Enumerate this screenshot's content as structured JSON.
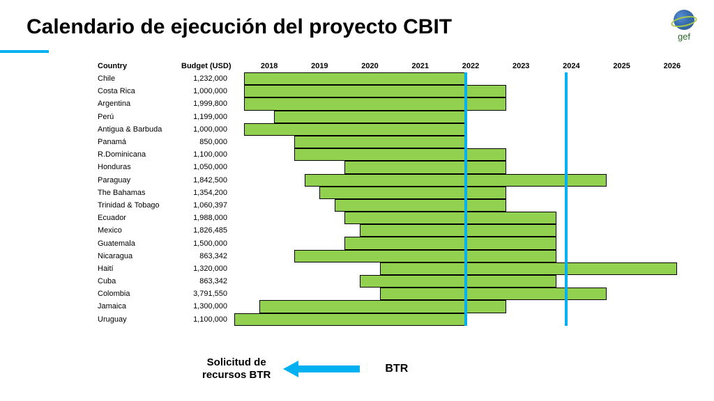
{
  "title": "Calendario de ejecución del proyecto CBIT",
  "logo_text": "gef",
  "headers": {
    "country": "Country",
    "budget": "Budget (USD)"
  },
  "years": [
    "2018",
    "2019",
    "2020",
    "2021",
    "2022",
    "2023",
    "2024",
    "2025",
    "2026"
  ],
  "timeline_start": 2018,
  "timeline_end": 2027,
  "bar_color": "#92d050",
  "bar_border": "#000000",
  "vline_color": "#00b0f0",
  "vlines": [
    {
      "year": 2022.4
    },
    {
      "year": 2024.4
    }
  ],
  "rows": [
    {
      "country": "Chile",
      "budget": "1,232,000",
      "start": 2018.0,
      "end": 2022.4
    },
    {
      "country": "Costa Rica",
      "budget": "1,000,000",
      "start": 2018.0,
      "end": 2023.2
    },
    {
      "country": "Argentina",
      "budget": "1,999,800",
      "start": 2018.0,
      "end": 2023.2
    },
    {
      "country": "Perú",
      "budget": "1,199,000",
      "start": 2018.6,
      "end": 2022.4
    },
    {
      "country": "Antigua & Barbuda",
      "budget": "1,000,000",
      "start": 2018.0,
      "end": 2022.4
    },
    {
      "country": "Panamá",
      "budget": "   850,000",
      "start": 2019.0,
      "end": 2022.4
    },
    {
      "country": "R.Dominicana",
      "budget": "1,100,000",
      "start": 2019.0,
      "end": 2023.2
    },
    {
      "country": "Honduras",
      "budget": "1,050,000",
      "start": 2020.0,
      "end": 2023.2
    },
    {
      "country": "Paraguay",
      "budget": "1,842,500",
      "start": 2019.2,
      "end": 2025.2
    },
    {
      "country": "The Bahamas",
      "budget": "1,354,200",
      "start": 2019.5,
      "end": 2023.2
    },
    {
      "country": "Trinidad & Tobago",
      "budget": "1,060,397",
      "start": 2019.8,
      "end": 2023.2
    },
    {
      "country": "Ecuador",
      "budget": "1,988,000",
      "start": 2020.0,
      "end": 2024.2
    },
    {
      "country": "Mexico",
      "budget": "1,826,485",
      "start": 2020.3,
      "end": 2024.2
    },
    {
      "country": "Guatemala",
      "budget": "1,500,000",
      "start": 2020.0,
      "end": 2024.2
    },
    {
      "country": "Nicaragua",
      "budget": "   863,342",
      "start": 2019.0,
      "end": 2024.2
    },
    {
      "country": "Haití",
      "budget": "1,320,000",
      "start": 2020.7,
      "end": 2026.6
    },
    {
      "country": "Cuba",
      "budget": "   863,342",
      "start": 2020.3,
      "end": 2024.2
    },
    {
      "country": "Colombia",
      "budget": "3,791,550",
      "start": 2020.7,
      "end": 2025.2
    },
    {
      "country": "Jamaica",
      "budget": "1,300,000",
      "start": 2018.3,
      "end": 2023.2
    },
    {
      "country": "Uruguay",
      "budget": "1,100,000",
      "start": 2017.8,
      "end": 2022.4
    }
  ],
  "footer": {
    "left_label_line1": "Solicitud de",
    "left_label_line2": "recursos BTR",
    "right_label": "BTR"
  }
}
